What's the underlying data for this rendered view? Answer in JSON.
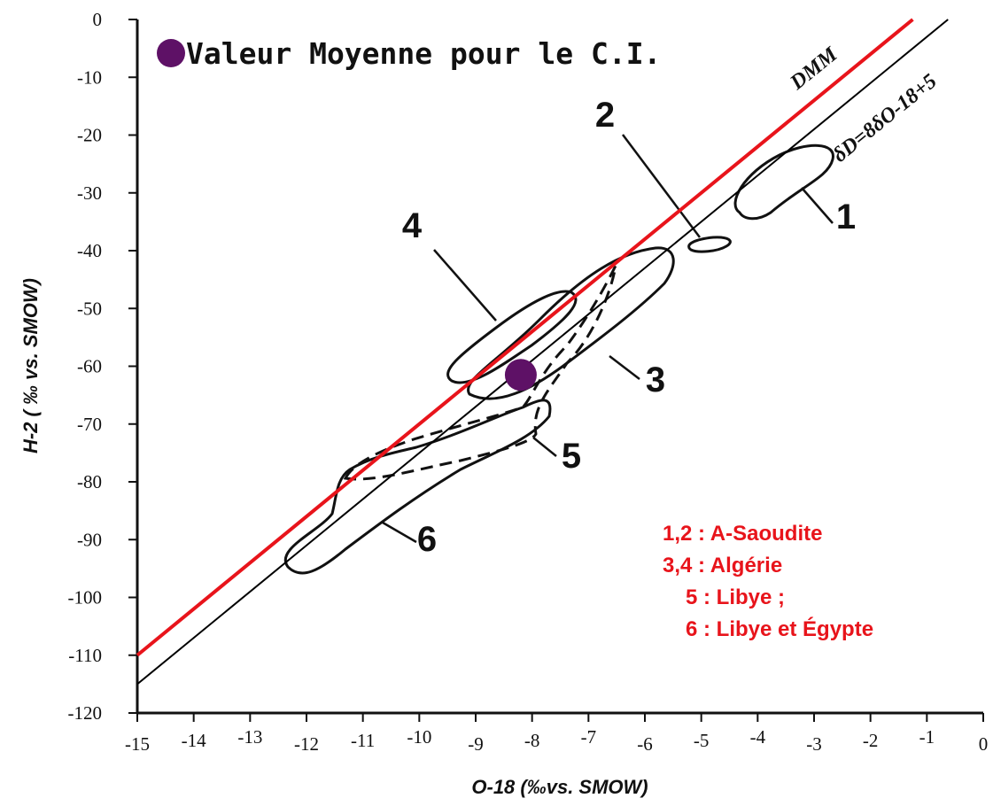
{
  "chart_data": {
    "type": "scatter",
    "xlabel": "O-18 (‰vs. SMOW)",
    "ylabel": "H-2 ( ‰ vs. SMOW)",
    "xlim": [
      -15,
      0
    ],
    "ylim": [
      -120,
      0
    ],
    "xticks": [
      -15,
      -14,
      -13,
      -12,
      -11,
      -10,
      -9,
      -8,
      -7,
      -6,
      -5,
      -4,
      -3,
      -2,
      -1,
      0
    ],
    "yticks": [
      -120,
      -110,
      -100,
      -90,
      -80,
      -70,
      -60,
      -50,
      -40,
      -30,
      -20,
      -10,
      0
    ],
    "series": [
      {
        "name": "Valeur Moyenne pour le C.I.",
        "color": "#5e1166",
        "x": [
          -8.2
        ],
        "values": [
          -61.5
        ]
      }
    ],
    "lines": [
      {
        "name": "DMM",
        "color": "#e8141b",
        "x": [
          -15,
          -1.25
        ],
        "values": [
          -110,
          0
        ]
      },
      {
        "name": "δD=8δO-18+5",
        "color": "#000000",
        "x": [
          -15,
          -0.625
        ],
        "values": [
          -115,
          0
        ]
      }
    ],
    "region_labels": [
      "1",
      "2",
      "3",
      "4",
      "5",
      "6"
    ],
    "annotations": [
      "1,2 : A-Saoudite",
      "3,4 : Algérie",
      "5 : Libye ;",
      "6 : Libye et Égypte"
    ]
  }
}
